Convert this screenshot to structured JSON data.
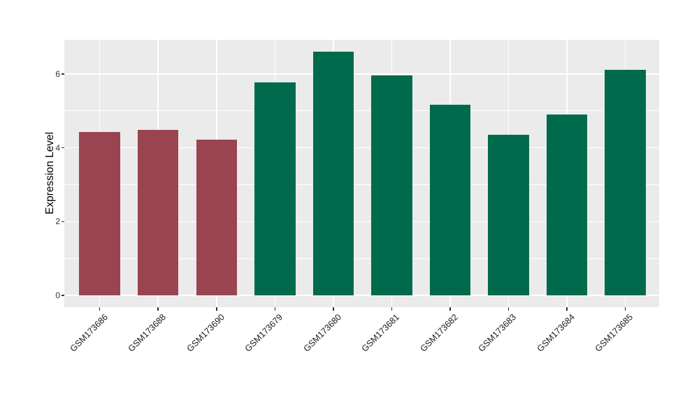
{
  "chart_data": {
    "type": "bar",
    "title": "",
    "xlabel": "",
    "ylabel": "Expression Level",
    "categories": [
      "GSM173686",
      "GSM173688",
      "GSM173690",
      "GSM173679",
      "GSM173680",
      "GSM173681",
      "GSM173682",
      "GSM173683",
      "GSM173684",
      "GSM173685"
    ],
    "values": [
      4.43,
      4.48,
      4.23,
      5.77,
      6.6,
      5.97,
      5.16,
      4.36,
      4.9,
      6.12
    ],
    "bar_colors": [
      "#9B4451",
      "#9B4451",
      "#9B4451",
      "#006B4C",
      "#006B4C",
      "#006B4C",
      "#006B4C",
      "#006B4C",
      "#006B4C",
      "#006B4C"
    ],
    "group_colors": {
      "maroon_group": "#9B4451",
      "green_group": "#006B4C"
    },
    "yticks": [
      0,
      2,
      4,
      6
    ],
    "yticks_minor": [
      1,
      3,
      5
    ],
    "ylim": [
      -0.33,
      6.93
    ],
    "grid": "white major and minor horizontal lines, white vertical line at each category, on gray panel",
    "legend": "none",
    "panel_bg": "#EBEBEB",
    "tick_color": "#333333"
  }
}
